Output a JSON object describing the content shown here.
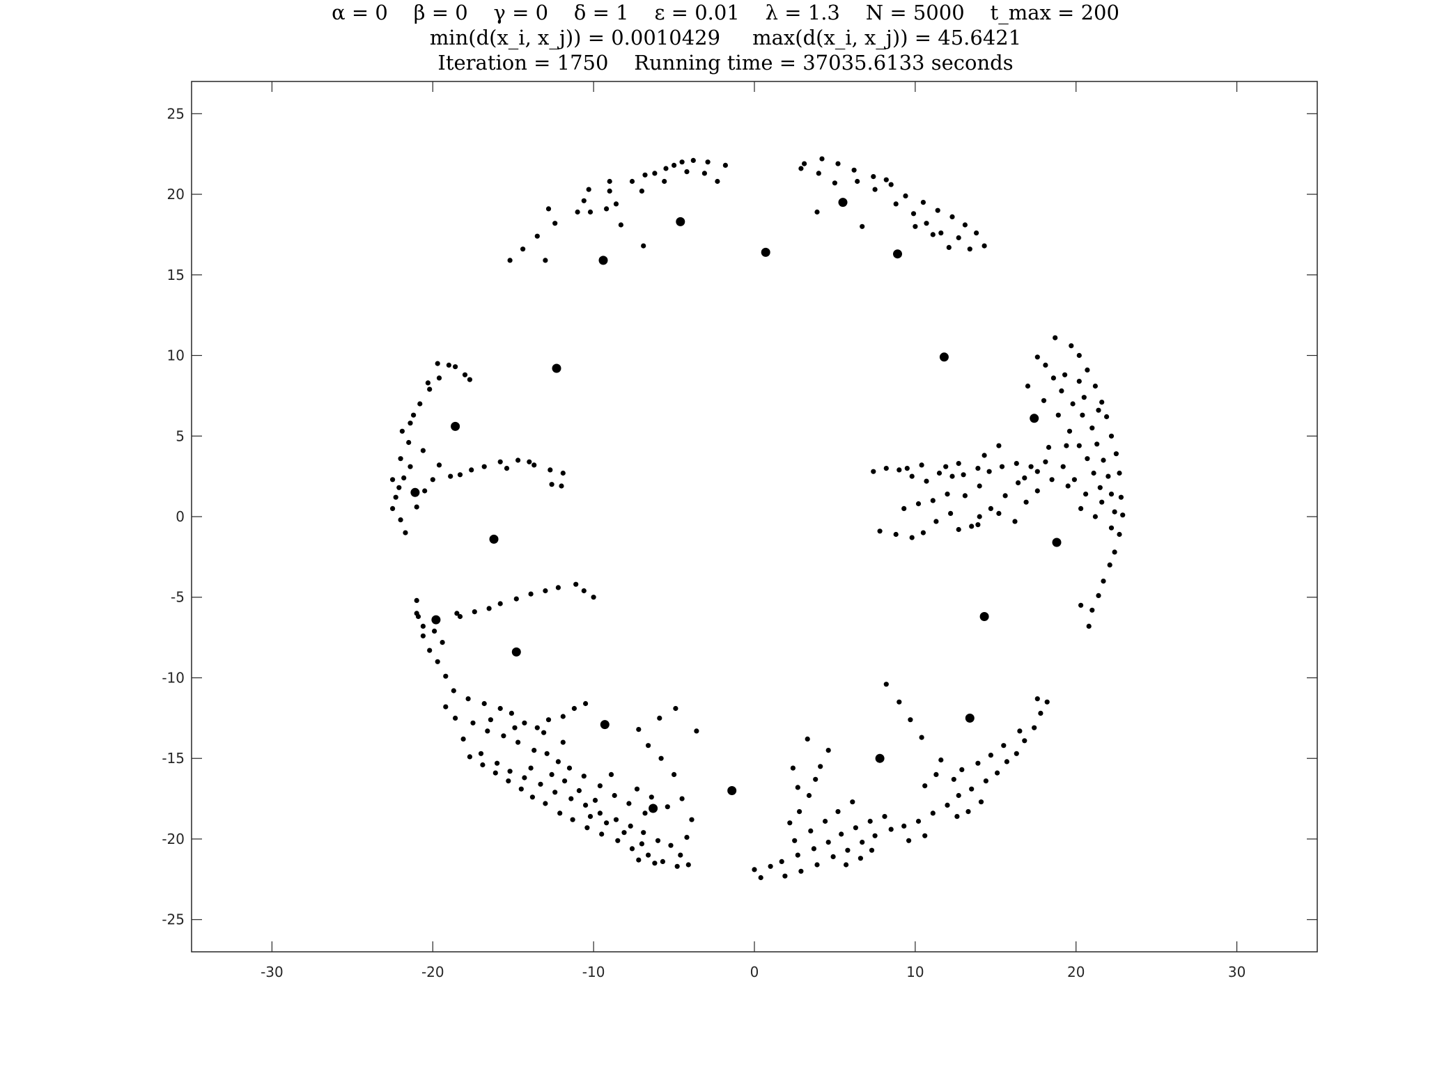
{
  "chart_data": {
    "type": "scatter",
    "title_lines": [
      "α = 0    β = 0    γ = 0    δ = 1    ε = 0.01    λ = 1.3    N = 5000    t_max = 200",
      "min(d(x_i, x_j)) = 0.0010429     max(d(x_i, x_j)) = 45.6421",
      "Iteration = 1750    Running time = 37035.6133 seconds"
    ],
    "xlabel": "",
    "ylabel": "",
    "xlim": [
      -35,
      35
    ],
    "ylim": [
      -27,
      27
    ],
    "xticks": [
      -30,
      -20,
      -10,
      0,
      10,
      20,
      30
    ],
    "yticks": [
      -25,
      -20,
      -15,
      -10,
      -5,
      0,
      5,
      10,
      15,
      20,
      25
    ],
    "grid": false,
    "legend": "none",
    "marker_color": "#000000",
    "axis_color": "#262626",
    "large_points": [
      [
        -4.6,
        18.3
      ],
      [
        -9.4,
        15.9
      ],
      [
        0.7,
        16.4
      ],
      [
        5.5,
        19.5
      ],
      [
        8.9,
        16.3
      ],
      [
        -12.3,
        9.2
      ],
      [
        -18.6,
        5.6
      ],
      [
        11.8,
        9.9
      ],
      [
        17.4,
        6.1
      ],
      [
        -21.1,
        1.5
      ],
      [
        -16.2,
        -1.4
      ],
      [
        18.8,
        -1.6
      ],
      [
        14.3,
        -6.2
      ],
      [
        -14.8,
        -8.4
      ],
      [
        -19.8,
        -6.4
      ],
      [
        -9.3,
        -12.9
      ],
      [
        13.4,
        -12.5
      ],
      [
        7.8,
        -15.0
      ],
      [
        -1.4,
        -17.0
      ],
      [
        -6.3,
        -18.1
      ]
    ],
    "points": [
      [
        -12.8,
        19.1
      ],
      [
        -10.6,
        19.6
      ],
      [
        -9.0,
        20.2
      ],
      [
        -7.6,
        20.8
      ],
      [
        -6.2,
        21.3
      ],
      [
        -5.0,
        21.8
      ],
      [
        -3.8,
        22.1
      ],
      [
        -2.9,
        22.0
      ],
      [
        -1.8,
        21.8
      ],
      [
        -2.3,
        20.8
      ],
      [
        -8.6,
        19.4
      ],
      [
        -7.0,
        20.2
      ],
      [
        -5.6,
        20.8
      ],
      [
        -4.2,
        21.4
      ],
      [
        -11.0,
        18.9
      ],
      [
        -12.4,
        18.2
      ],
      [
        -13.5,
        17.4
      ],
      [
        -14.4,
        16.6
      ],
      [
        -15.2,
        15.9
      ],
      [
        -13.0,
        15.9
      ],
      [
        -10.2,
        18.9
      ],
      [
        -8.3,
        18.1
      ],
      [
        -9.2,
        19.1
      ],
      [
        -6.9,
        16.8
      ],
      [
        -9.0,
        20.8
      ],
      [
        -10.3,
        20.3
      ],
      [
        -6.8,
        21.2
      ],
      [
        -5.5,
        21.6
      ],
      [
        -4.5,
        22.0
      ],
      [
        -3.1,
        21.3
      ],
      [
        3.1,
        21.9
      ],
      [
        4.2,
        22.2
      ],
      [
        5.2,
        21.9
      ],
      [
        6.2,
        21.5
      ],
      [
        7.4,
        21.1
      ],
      [
        8.5,
        20.6
      ],
      [
        9.4,
        19.9
      ],
      [
        10.5,
        19.5
      ],
      [
        11.4,
        19.0
      ],
      [
        12.3,
        18.6
      ],
      [
        13.1,
        18.1
      ],
      [
        13.8,
        17.6
      ],
      [
        14.3,
        16.8
      ],
      [
        4.0,
        21.3
      ],
      [
        5.0,
        20.7
      ],
      [
        6.4,
        20.8
      ],
      [
        7.5,
        20.3
      ],
      [
        8.8,
        19.4
      ],
      [
        9.9,
        18.8
      ],
      [
        10.7,
        18.2
      ],
      [
        11.6,
        17.6
      ],
      [
        12.7,
        17.3
      ],
      [
        13.4,
        16.6
      ],
      [
        12.1,
        16.7
      ],
      [
        3.9,
        18.9
      ],
      [
        6.7,
        18.0
      ],
      [
        2.9,
        21.6
      ],
      [
        10.0,
        18.0
      ],
      [
        11.1,
        17.5
      ],
      [
        8.2,
        20.9
      ],
      [
        -22.1,
        1.8
      ],
      [
        -22.5,
        2.3
      ],
      [
        -22.0,
        3.6
      ],
      [
        -21.5,
        4.6
      ],
      [
        -21.9,
        5.3
      ],
      [
        -21.2,
        6.3
      ],
      [
        -20.8,
        7.0
      ],
      [
        -20.2,
        7.9
      ],
      [
        -19.6,
        8.6
      ],
      [
        -19.0,
        9.4
      ],
      [
        -18.0,
        8.8
      ],
      [
        -22.5,
        0.5
      ],
      [
        -22.0,
        -0.2
      ],
      [
        -21.7,
        -1.0
      ],
      [
        -21.0,
        0.6
      ],
      [
        -20.5,
        1.6
      ],
      [
        -20.0,
        2.3
      ],
      [
        -21.4,
        3.1
      ],
      [
        -20.6,
        4.1
      ],
      [
        -19.6,
        3.2
      ],
      [
        -18.9,
        2.5
      ],
      [
        -17.6,
        2.9
      ],
      [
        -16.8,
        3.1
      ],
      [
        -15.8,
        3.4
      ],
      [
        -14.7,
        3.5
      ],
      [
        -13.7,
        3.2
      ],
      [
        -12.7,
        2.9
      ],
      [
        -11.9,
        2.7
      ],
      [
        -12.6,
        2.0
      ],
      [
        -12.0,
        1.9
      ],
      [
        -19.7,
        9.5
      ],
      [
        -18.6,
        9.3
      ],
      [
        -17.7,
        8.5
      ],
      [
        -21.4,
        5.8
      ],
      [
        -22.3,
        1.2
      ],
      [
        -21.8,
        2.4
      ],
      [
        -20.3,
        8.3
      ],
      [
        -18.3,
        2.6
      ],
      [
        -15.4,
        3.0
      ],
      [
        -14.0,
        3.4
      ],
      [
        -21.0,
        -5.2
      ],
      [
        -20.9,
        -6.2
      ],
      [
        -20.6,
        -7.4
      ],
      [
        -20.2,
        -8.3
      ],
      [
        -19.7,
        -9.0
      ],
      [
        -19.2,
        -9.9
      ],
      [
        -18.7,
        -10.8
      ],
      [
        -18.3,
        -6.2
      ],
      [
        -17.4,
        -5.9
      ],
      [
        -16.5,
        -5.7
      ],
      [
        -15.8,
        -5.4
      ],
      [
        -14.8,
        -5.1
      ],
      [
        -13.9,
        -4.8
      ],
      [
        -13.0,
        -4.6
      ],
      [
        -12.2,
        -4.4
      ],
      [
        -11.1,
        -4.2
      ],
      [
        -10.6,
        -4.6
      ],
      [
        -10.0,
        -5.0
      ],
      [
        -19.4,
        -7.8
      ],
      [
        -19.9,
        -7.1
      ],
      [
        -20.6,
        -6.8
      ],
      [
        -21.0,
        -6.0
      ],
      [
        -18.5,
        -6.0
      ],
      [
        -17.8,
        -11.3
      ],
      [
        -16.8,
        -11.6
      ],
      [
        -15.8,
        -11.9
      ],
      [
        -15.1,
        -12.2
      ],
      [
        -14.3,
        -12.8
      ],
      [
        -13.5,
        -13.1
      ],
      [
        -12.8,
        -12.6
      ],
      [
        -11.9,
        -12.4
      ],
      [
        -11.2,
        -11.9
      ],
      [
        -10.5,
        -11.6
      ],
      [
        -17.5,
        -12.8
      ],
      [
        -16.6,
        -13.3
      ],
      [
        -15.6,
        -13.6
      ],
      [
        -14.7,
        -14.0
      ],
      [
        -13.7,
        -14.5
      ],
      [
        -12.9,
        -14.7
      ],
      [
        -12.2,
        -15.2
      ],
      [
        -11.5,
        -15.6
      ],
      [
        -10.6,
        -16.1
      ],
      [
        -9.6,
        -16.7
      ],
      [
        -8.7,
        -17.3
      ],
      [
        -7.8,
        -17.8
      ],
      [
        -6.8,
        -18.4
      ],
      [
        -17.0,
        -14.7
      ],
      [
        -16.0,
        -15.3
      ],
      [
        -15.2,
        -15.8
      ],
      [
        -14.3,
        -16.2
      ],
      [
        -13.3,
        -16.6
      ],
      [
        -12.4,
        -17.1
      ],
      [
        -11.4,
        -17.5
      ],
      [
        -10.5,
        -17.9
      ],
      [
        -9.6,
        -18.4
      ],
      [
        -8.6,
        -18.8
      ],
      [
        -7.7,
        -19.2
      ],
      [
        -6.9,
        -19.6
      ],
      [
        -6.0,
        -20.1
      ],
      [
        -5.2,
        -20.4
      ],
      [
        -4.6,
        -21.0
      ],
      [
        -4.1,
        -21.6
      ],
      [
        -4.8,
        -21.7
      ],
      [
        -5.7,
        -21.4
      ],
      [
        -6.6,
        -21.0
      ],
      [
        -7.6,
        -20.6
      ],
      [
        -8.5,
        -20.1
      ],
      [
        -9.5,
        -19.7
      ],
      [
        -10.4,
        -19.3
      ],
      [
        -11.3,
        -18.8
      ],
      [
        -12.1,
        -18.4
      ],
      [
        -13.0,
        -17.8
      ],
      [
        -13.8,
        -17.4
      ],
      [
        -14.5,
        -16.9
      ],
      [
        -15.3,
        -16.4
      ],
      [
        -16.1,
        -15.9
      ],
      [
        -16.9,
        -15.4
      ],
      [
        -17.7,
        -14.9
      ],
      [
        -18.1,
        -13.8
      ],
      [
        -18.6,
        -12.5
      ],
      [
        -19.2,
        -11.8
      ],
      [
        -16.4,
        -12.6
      ],
      [
        -14.9,
        -13.1
      ],
      [
        -13.9,
        -15.6
      ],
      [
        -12.6,
        -16.0
      ],
      [
        -11.8,
        -16.4
      ],
      [
        -10.9,
        -17.0
      ],
      [
        -9.9,
        -17.6
      ],
      [
        -8.9,
        -16.0
      ],
      [
        -7.3,
        -16.9
      ],
      [
        -6.4,
        -17.4
      ],
      [
        -5.4,
        -18.0
      ],
      [
        -7.0,
        -20.3
      ],
      [
        -8.1,
        -19.6
      ],
      [
        -9.2,
        -19.0
      ],
      [
        -10.2,
        -18.6
      ],
      [
        -11.9,
        -14.0
      ],
      [
        -13.1,
        -13.4
      ],
      [
        -6.2,
        -21.5
      ],
      [
        -7.2,
        -21.3
      ],
      [
        -4.2,
        -19.9
      ],
      [
        -3.9,
        -18.8
      ],
      [
        -4.5,
        -17.5
      ],
      [
        -5.0,
        -16.0
      ],
      [
        -5.8,
        -15.0
      ],
      [
        -6.6,
        -14.2
      ],
      [
        -7.2,
        -13.2
      ],
      [
        -5.9,
        -12.5
      ],
      [
        -4.9,
        -11.9
      ],
      [
        -3.6,
        -13.3
      ],
      [
        1.0,
        -21.7
      ],
      [
        1.9,
        -22.3
      ],
      [
        2.9,
        -22.0
      ],
      [
        3.9,
        -21.6
      ],
      [
        4.9,
        -21.1
      ],
      [
        5.8,
        -20.7
      ],
      [
        6.7,
        -20.2
      ],
      [
        7.5,
        -19.8
      ],
      [
        8.5,
        -19.4
      ],
      [
        9.3,
        -19.2
      ],
      [
        10.2,
        -18.9
      ],
      [
        11.1,
        -18.4
      ],
      [
        12.0,
        -17.9
      ],
      [
        12.7,
        -17.3
      ],
      [
        13.5,
        -16.9
      ],
      [
        14.4,
        -16.4
      ],
      [
        15.1,
        -15.9
      ],
      [
        15.7,
        -15.2
      ],
      [
        16.3,
        -14.7
      ],
      [
        16.8,
        -13.9
      ],
      [
        17.4,
        -13.1
      ],
      [
        17.8,
        -12.2
      ],
      [
        18.2,
        -11.5
      ],
      [
        17.6,
        -11.3
      ],
      [
        0.0,
        -21.9
      ],
      [
        0.4,
        -22.4
      ],
      [
        1.7,
        -21.4
      ],
      [
        2.7,
        -21.0
      ],
      [
        3.7,
        -20.6
      ],
      [
        4.6,
        -20.2
      ],
      [
        5.4,
        -19.7
      ],
      [
        6.3,
        -19.3
      ],
      [
        7.2,
        -18.9
      ],
      [
        8.1,
        -18.6
      ],
      [
        2.5,
        -20.1
      ],
      [
        3.5,
        -19.5
      ],
      [
        4.4,
        -18.9
      ],
      [
        5.2,
        -18.3
      ],
      [
        6.1,
        -17.7
      ],
      [
        2.2,
        -19.0
      ],
      [
        2.8,
        -18.3
      ],
      [
        3.4,
        -17.3
      ],
      [
        3.8,
        -16.3
      ],
      [
        4.1,
        -15.5
      ],
      [
        2.7,
        -16.8
      ],
      [
        2.4,
        -15.6
      ],
      [
        4.6,
        -14.5
      ],
      [
        3.3,
        -13.8
      ],
      [
        12.4,
        -16.3
      ],
      [
        12.9,
        -15.7
      ],
      [
        13.9,
        -15.3
      ],
      [
        14.7,
        -14.8
      ],
      [
        15.5,
        -14.2
      ],
      [
        16.5,
        -13.3
      ],
      [
        11.6,
        -15.1
      ],
      [
        10.4,
        -13.7
      ],
      [
        9.7,
        -12.6
      ],
      [
        9.0,
        -11.5
      ],
      [
        8.2,
        -10.4
      ],
      [
        13.3,
        -18.3
      ],
      [
        12.6,
        -18.6
      ],
      [
        14.1,
        -17.7
      ],
      [
        10.6,
        -16.7
      ],
      [
        11.3,
        -16.0
      ],
      [
        5.7,
        -21.6
      ],
      [
        6.6,
        -21.2
      ],
      [
        7.3,
        -20.7
      ],
      [
        9.6,
        -20.1
      ],
      [
        10.6,
        -19.8
      ],
      [
        18.7,
        11.1
      ],
      [
        19.7,
        10.6
      ],
      [
        20.2,
        10.0
      ],
      [
        20.7,
        9.1
      ],
      [
        21.2,
        8.1
      ],
      [
        21.6,
        7.1
      ],
      [
        21.9,
        6.2
      ],
      [
        22.2,
        5.0
      ],
      [
        22.5,
        3.9
      ],
      [
        22.7,
        2.7
      ],
      [
        22.8,
        1.2
      ],
      [
        22.9,
        0.1
      ],
      [
        22.7,
        -1.1
      ],
      [
        22.4,
        -2.2
      ],
      [
        22.1,
        -3.0
      ],
      [
        21.7,
        -4.0
      ],
      [
        21.4,
        -4.9
      ],
      [
        21.0,
        -5.8
      ],
      [
        20.8,
        -6.8
      ],
      [
        20.3,
        -5.5
      ],
      [
        17.6,
        9.9
      ],
      [
        18.1,
        9.4
      ],
      [
        18.6,
        8.6
      ],
      [
        19.1,
        7.8
      ],
      [
        19.8,
        7.0
      ],
      [
        20.4,
        6.3
      ],
      [
        21.0,
        5.5
      ],
      [
        21.3,
        4.5
      ],
      [
        21.7,
        3.5
      ],
      [
        22.0,
        2.5
      ],
      [
        22.2,
        1.4
      ],
      [
        22.4,
        0.3
      ],
      [
        22.2,
        -0.7
      ],
      [
        19.3,
        8.8
      ],
      [
        20.2,
        8.4
      ],
      [
        20.5,
        7.4
      ],
      [
        21.4,
        6.6
      ],
      [
        18.9,
        6.3
      ],
      [
        19.6,
        5.3
      ],
      [
        20.2,
        4.4
      ],
      [
        20.7,
        3.6
      ],
      [
        21.1,
        2.7
      ],
      [
        21.5,
        1.8
      ],
      [
        21.6,
        0.9
      ],
      [
        19.9,
        2.3
      ],
      [
        20.6,
        1.4
      ],
      [
        20.3,
        0.5
      ],
      [
        21.2,
        0.0
      ],
      [
        17.0,
        8.1
      ],
      [
        18.0,
        7.2
      ],
      [
        19.2,
        3.1
      ],
      [
        18.5,
        2.3
      ],
      [
        17.6,
        1.6
      ],
      [
        16.9,
        0.9
      ],
      [
        16.4,
        2.1
      ],
      [
        15.6,
        1.3
      ],
      [
        14.7,
        0.5
      ],
      [
        14.0,
        0.0
      ],
      [
        13.5,
        -0.6
      ],
      [
        12.7,
        -0.8
      ],
      [
        19.5,
        1.9
      ],
      [
        18.1,
        3.4
      ],
      [
        17.2,
        3.1
      ],
      [
        16.3,
        3.3
      ],
      [
        15.4,
        3.1
      ],
      [
        14.6,
        2.8
      ],
      [
        13.9,
        3.0
      ],
      [
        13.0,
        2.6
      ],
      [
        12.3,
        2.5
      ],
      [
        11.5,
        2.7
      ],
      [
        10.7,
        2.2
      ],
      [
        9.8,
        2.5
      ],
      [
        9.0,
        2.9
      ],
      [
        8.2,
        3.0
      ],
      [
        7.4,
        2.8
      ],
      [
        13.1,
        1.3
      ],
      [
        12.0,
        1.4
      ],
      [
        11.1,
        1.0
      ],
      [
        10.2,
        0.8
      ],
      [
        9.3,
        0.5
      ],
      [
        15.2,
        4.4
      ],
      [
        14.3,
        3.8
      ],
      [
        12.7,
        3.3
      ],
      [
        11.9,
        3.1
      ],
      [
        10.4,
        3.2
      ],
      [
        9.5,
        3.0
      ],
      [
        13.9,
        -0.5
      ],
      [
        12.2,
        0.2
      ],
      [
        11.3,
        -0.3
      ],
      [
        10.5,
        -1.0
      ],
      [
        9.8,
        -1.3
      ],
      [
        8.8,
        -1.1
      ],
      [
        7.8,
        -0.9
      ],
      [
        16.2,
        -0.3
      ],
      [
        15.2,
        0.2
      ],
      [
        14.0,
        1.9
      ],
      [
        16.8,
        2.4
      ],
      [
        17.6,
        2.8
      ],
      [
        18.3,
        4.3
      ],
      [
        19.4,
        4.4
      ]
    ]
  }
}
